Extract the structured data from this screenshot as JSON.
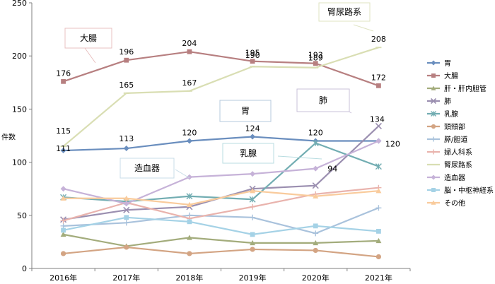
{
  "chart_data": {
    "type": "line",
    "ylabel": "件数",
    "xlabel": "",
    "ylim": [
      0,
      250
    ],
    "yticks": [
      0,
      50,
      100,
      150,
      200,
      250
    ],
    "grid": false,
    "legend_position": "right",
    "x": [
      "2016年",
      "2017年",
      "2018年",
      "2019年",
      "2020年",
      "2021年"
    ],
    "series": [
      {
        "name": "胃",
        "color": "#6A8EBE",
        "marker": "diamond",
        "values": [
          111,
          113,
          120,
          124,
          120,
          120
        ]
      },
      {
        "name": "大腸",
        "color": "#B77F80",
        "marker": "square",
        "values": [
          176,
          196,
          204,
          195,
          193,
          172
        ]
      },
      {
        "name": "肝・肝内胆管",
        "color": "#A3AC7C",
        "marker": "triangle",
        "values": [
          32,
          21,
          29,
          24,
          24,
          26
        ]
      },
      {
        "name": "肺",
        "color": "#9B8FB0",
        "marker": "x",
        "values": [
          46,
          55,
          58,
          75,
          78,
          134
        ]
      },
      {
        "name": "乳腺",
        "color": "#72ADB2",
        "marker": "star",
        "values": [
          67,
          63,
          68,
          65,
          118,
          96
        ]
      },
      {
        "name": "頭頸部",
        "color": "#D3A483",
        "marker": "circle",
        "values": [
          14,
          20,
          14,
          18,
          17,
          11
        ]
      },
      {
        "name": "膵/胆道",
        "color": "#A9C2DC",
        "marker": "plus",
        "values": [
          40,
          43,
          50,
          48,
          33,
          57
        ]
      },
      {
        "name": "婦人科系",
        "color": "#E9B3AD",
        "marker": "plus",
        "values": [
          45,
          62,
          47,
          58,
          70,
          76
        ]
      },
      {
        "name": "腎尿路系",
        "color": "#D9DEB3",
        "marker": "line",
        "values": [
          115,
          165,
          167,
          190,
          189,
          208
        ]
      },
      {
        "name": "造血器",
        "color": "#C6B2D8",
        "marker": "diamond",
        "values": [
          75,
          61,
          86,
          89,
          94,
          120
        ]
      },
      {
        "name": "脳・中枢神経系",
        "color": "#A5D2E6",
        "marker": "square",
        "values": [
          36,
          48,
          44,
          32,
          40,
          35
        ]
      },
      {
        "name": "その他",
        "color": "#F9CB9C",
        "marker": "triangle",
        "values": [
          66,
          66,
          60,
          73,
          68,
          73
        ]
      }
    ],
    "data_labels": [
      {
        "series": "大腸",
        "values": [
          "176",
          "196",
          "204",
          "195",
          "193",
          "172"
        ]
      },
      {
        "series": "腎尿路系",
        "values": [
          "115",
          "165",
          "167",
          "190",
          "189",
          "208"
        ]
      },
      {
        "series": "胃",
        "values": [
          "111",
          "113",
          "120",
          "124",
          "120",
          "120"
        ]
      },
      {
        "series": "肺",
        "values": [
          "",
          "",
          "",
          "",
          "",
          "134"
        ]
      },
      {
        "series": "造血器",
        "values": [
          "",
          "",
          "",
          "",
          "94",
          ""
        ]
      }
    ],
    "annotations": [
      {
        "text": "大腸",
        "border": "#E8C0C0"
      },
      {
        "text": "腎尿路系",
        "border": "#DFE3C2"
      },
      {
        "text": "胃",
        "border": "#B5C8DC"
      },
      {
        "text": "肺",
        "border": "#C9C0D8"
      },
      {
        "text": "乳腺",
        "border": "#B8DCE0"
      },
      {
        "text": "造血器",
        "border": "#C8DDE8"
      }
    ]
  }
}
